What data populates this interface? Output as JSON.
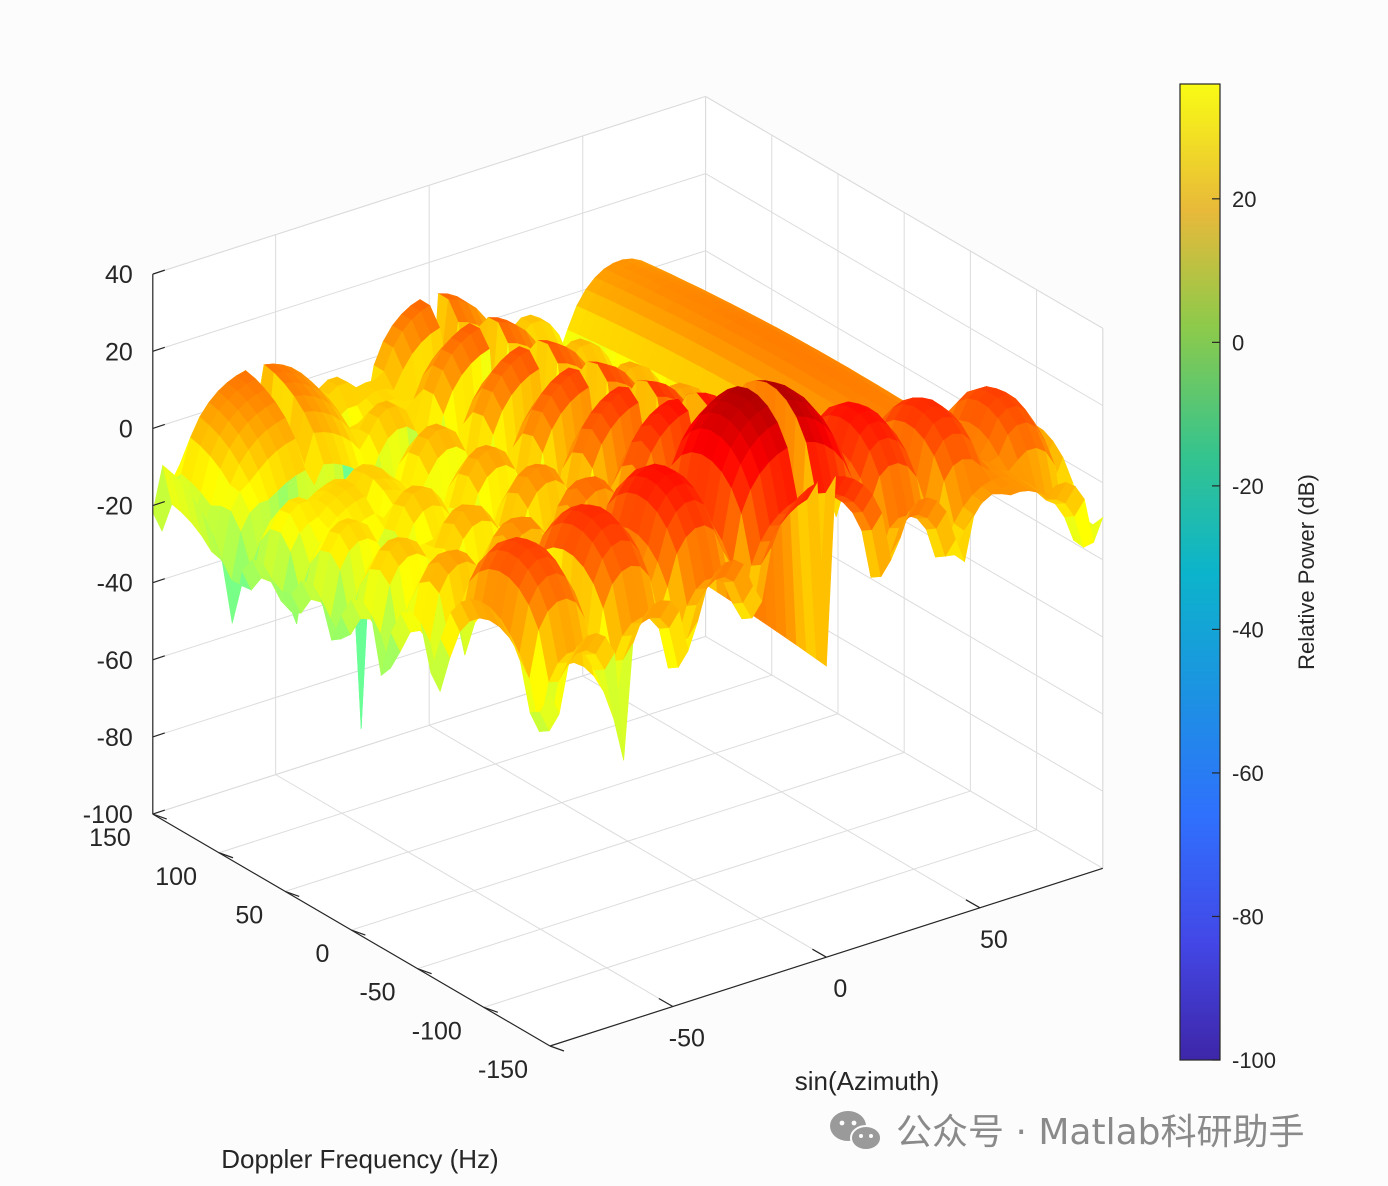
{
  "chart_data": {
    "type": "surface",
    "xlabel": "sin(Azimuth)",
    "ylabel": "Doppler Frequency (Hz)",
    "zlabel": "",
    "x_ticks": [
      -50,
      0,
      50
    ],
    "y_ticks": [
      -150,
      -100,
      -50,
      0,
      50,
      100,
      150
    ],
    "z_ticks": [
      -100,
      -80,
      -60,
      -40,
      -20,
      0,
      20,
      40
    ],
    "xlim": [
      -90,
      90
    ],
    "ylim": [
      -150,
      150
    ],
    "zlim": [
      -100,
      40
    ],
    "colormap": "jet",
    "grid": "on",
    "colorbar": {
      "label": "Relative Power (dB)",
      "ticks": [
        -100,
        -80,
        -60,
        -40,
        -20,
        0,
        20
      ],
      "range": [
        -100,
        36
      ],
      "colormap": "parula"
    },
    "peaks": [
      {
        "x": 0,
        "y": -100,
        "z": 38
      },
      {
        "x": 62,
        "y": 0,
        "z": 8
      },
      {
        "x": -60,
        "y": 150,
        "z": 10
      },
      {
        "x": 0,
        "y": 0,
        "z": -35
      }
    ]
  },
  "watermark": {
    "icon": "wechat-icon",
    "text": "公众号 · Matlab科研助手"
  }
}
